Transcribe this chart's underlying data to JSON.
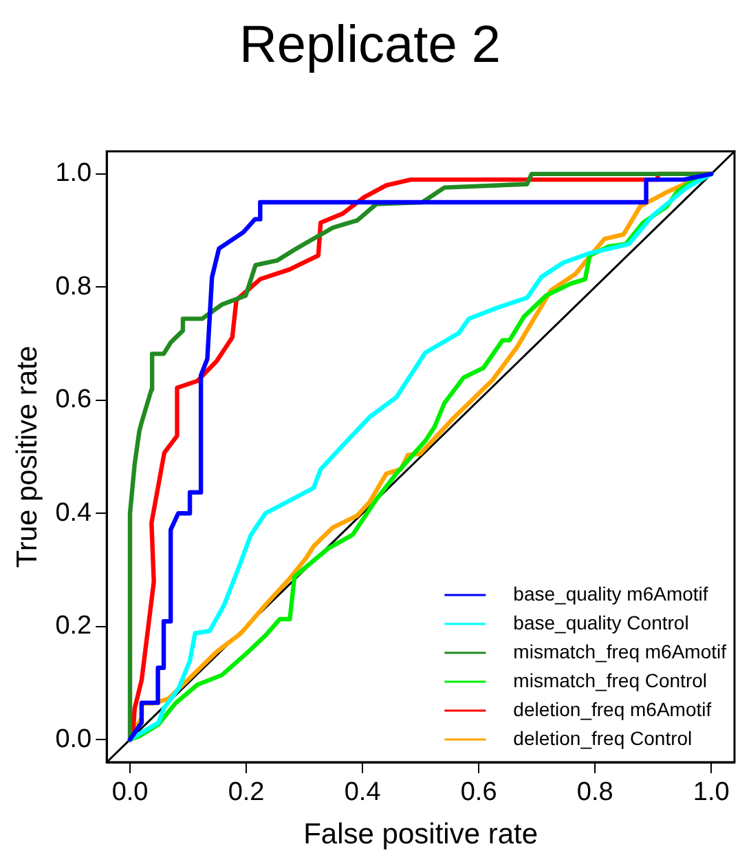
{
  "chart_data": {
    "type": "line",
    "title": "Replicate 2",
    "xlabel": "False positive rate",
    "ylabel": "True positive rate",
    "xlim": [
      -0.04,
      1.04
    ],
    "ylim": [
      -0.04,
      1.04
    ],
    "xticks": [
      {
        "value": 0,
        "label": "0.0"
      },
      0.2,
      0.4,
      0.6,
      0.8,
      {
        "value": 1,
        "label": "1.0"
      }
    ],
    "yticks": [
      {
        "value": 0,
        "label": "0.0"
      },
      0.2,
      0.4,
      0.6,
      0.8,
      {
        "value": 1,
        "label": "1.0"
      }
    ],
    "grid": false,
    "legend": "bottom right",
    "marker": "none",
    "line_style": "solid",
    "series": [
      {
        "name": "base_quality m6Amotif",
        "color": "#0000ff",
        "x": [
          0,
          0.02,
          0.02,
          0.048,
          0.048,
          0.058,
          0.058,
          0.07,
          0.07,
          0.083,
          0.103,
          0.103,
          0.122,
          0.122,
          0.133,
          0.141,
          0.153,
          0.195,
          0.215,
          0.224,
          0.224,
          0.888,
          0.888,
          0.953,
          1
        ],
        "values": [
          0,
          0.03,
          0.065,
          0.065,
          0.127,
          0.127,
          0.209,
          0.209,
          0.371,
          0.4,
          0.4,
          0.437,
          0.437,
          0.644,
          0.673,
          0.817,
          0.868,
          0.897,
          0.92,
          0.92,
          0.95,
          0.95,
          0.99,
          0.99,
          1
        ]
      },
      {
        "name": "base_quality Control",
        "color": "#00ffff",
        "x": [
          0,
          0.049,
          0.058,
          0.083,
          0.103,
          0.112,
          0.137,
          0.162,
          0.187,
          0.208,
          0.233,
          0.27,
          0.316,
          0.328,
          0.366,
          0.412,
          0.458,
          0.508,
          0.566,
          0.583,
          0.633,
          0.683,
          0.708,
          0.745,
          0.791,
          0.858,
          0.899,
          0.958,
          1
        ],
        "values": [
          0,
          0.03,
          0.055,
          0.089,
          0.139,
          0.188,
          0.192,
          0.238,
          0.304,
          0.362,
          0.4,
          0.42,
          0.445,
          0.478,
          0.52,
          0.57,
          0.605,
          0.684,
          0.719,
          0.744,
          0.764,
          0.781,
          0.818,
          0.843,
          0.86,
          0.876,
          0.926,
          0.976,
          1
        ]
      },
      {
        "name": "mismatch_freq m6Amotif",
        "color": "#228b22",
        "x": [
          0,
          0,
          0.008,
          0.016,
          0.02,
          0.037,
          0.038,
          0.058,
          0.07,
          0.091,
          0.091,
          0.124,
          0.158,
          0.199,
          0.216,
          0.253,
          0.283,
          0.308,
          0.349,
          0.391,
          0.424,
          0.503,
          0.541,
          0.683,
          0.691,
          1
        ],
        "values": [
          0,
          0.4,
          0.487,
          0.545,
          0.561,
          0.619,
          0.682,
          0.682,
          0.702,
          0.723,
          0.744,
          0.744,
          0.769,
          0.785,
          0.839,
          0.847,
          0.866,
          0.881,
          0.905,
          0.918,
          0.947,
          0.95,
          0.976,
          0.982,
          1,
          1
        ]
      },
      {
        "name": "mismatch_freq Control",
        "color": "#00ee00",
        "x": [
          0,
          0.016,
          0.049,
          0.078,
          0.116,
          0.158,
          0.199,
          0.233,
          0.258,
          0.275,
          0.283,
          0.341,
          0.383,
          0.424,
          0.458,
          0.508,
          0.524,
          0.541,
          0.574,
          0.608,
          0.641,
          0.653,
          0.678,
          0.716,
          0.758,
          0.783,
          0.791,
          0.824,
          0.853,
          0.883,
          0.924,
          0.941,
          0.974,
          1
        ],
        "values": [
          0,
          0.006,
          0.027,
          0.064,
          0.097,
          0.114,
          0.151,
          0.184,
          0.213,
          0.213,
          0.288,
          0.338,
          0.362,
          0.425,
          0.47,
          0.528,
          0.553,
          0.595,
          0.64,
          0.657,
          0.706,
          0.706,
          0.748,
          0.785,
          0.806,
          0.814,
          0.856,
          0.872,
          0.876,
          0.914,
          0.943,
          0.968,
          0.993,
          1
        ]
      },
      {
        "name": "deletion_freq m6Amotif",
        "color": "#ff0000",
        "x": [
          0,
          0.005,
          0.008,
          0.02,
          0.041,
          0.037,
          0.059,
          0.081,
          0.081,
          0.116,
          0.149,
          0.176,
          0.183,
          0.224,
          0.274,
          0.324,
          0.328,
          0.366,
          0.403,
          0.441,
          0.483,
          0.908,
          0.908,
          1
        ],
        "values": [
          0,
          0.01,
          0.055,
          0.105,
          0.279,
          0.383,
          0.507,
          0.537,
          0.622,
          0.634,
          0.669,
          0.711,
          0.777,
          0.814,
          0.831,
          0.856,
          0.914,
          0.93,
          0.959,
          0.98,
          0.99,
          0.99,
          1,
          1
        ]
      },
      {
        "name": "deletion_freq Control",
        "color": "#ffa500",
        "x": [
          0,
          0.02,
          0.02,
          0.04,
          0.066,
          0.149,
          0.191,
          0.233,
          0.274,
          0.303,
          0.316,
          0.349,
          0.391,
          0.412,
          0.441,
          0.466,
          0.478,
          0.499,
          0.558,
          0.624,
          0.666,
          0.724,
          0.766,
          0.816,
          0.849,
          0.878,
          0.924,
          0.958,
          0.974,
          1
        ],
        "values": [
          0,
          0.039,
          0.064,
          0.064,
          0.072,
          0.155,
          0.188,
          0.238,
          0.284,
          0.321,
          0.342,
          0.375,
          0.396,
          0.42,
          0.47,
          0.478,
          0.503,
          0.505,
          0.57,
          0.636,
          0.694,
          0.794,
          0.823,
          0.885,
          0.893,
          0.943,
          0.968,
          0.984,
          1,
          1
        ]
      },
      {
        "color": "#000000",
        "x": [
          -0.04,
          1.04
        ],
        "values": [
          -0.04,
          1.04
        ]
      }
    ]
  }
}
